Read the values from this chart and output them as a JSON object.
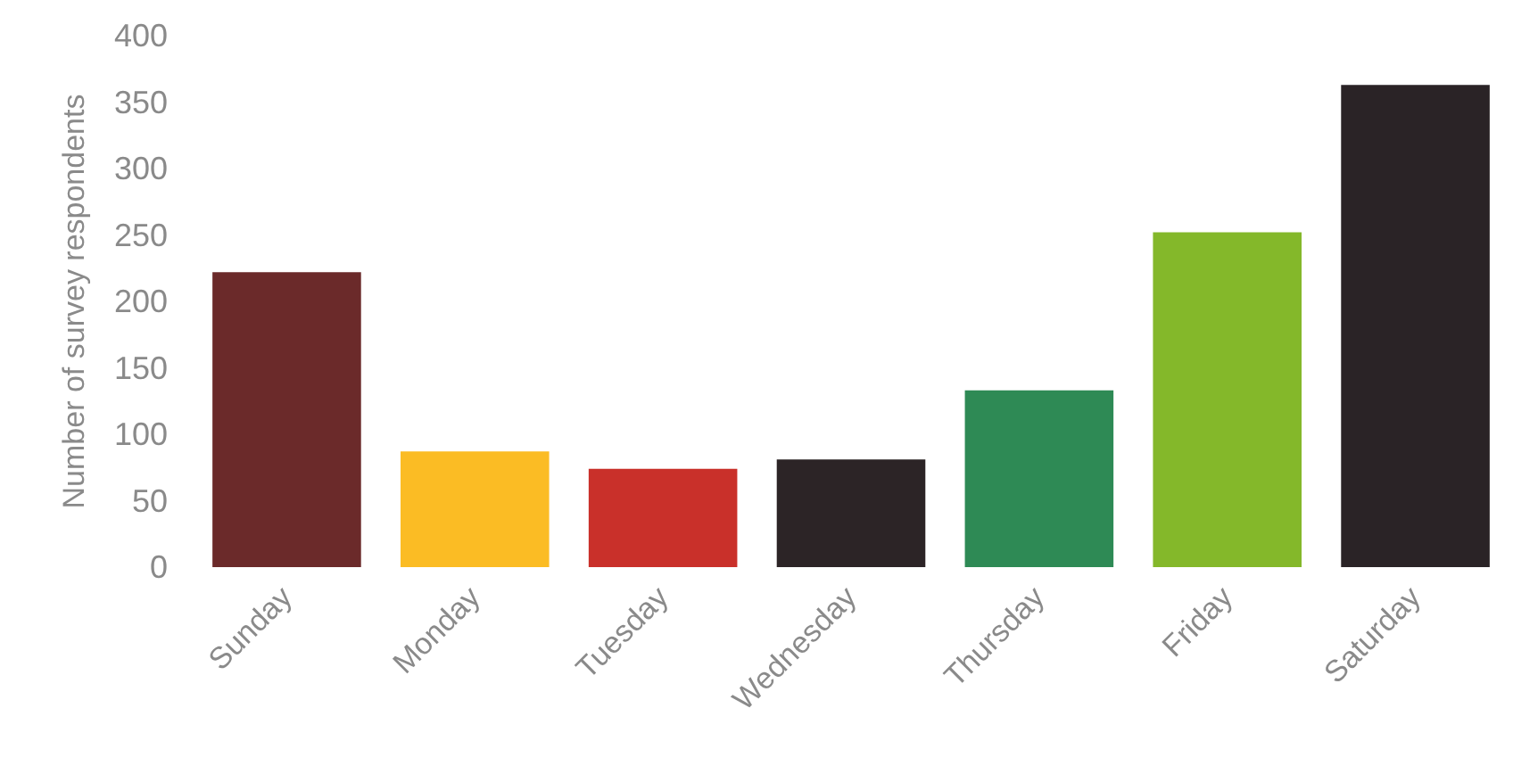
{
  "chart_data": {
    "type": "bar",
    "ylabel": "Number of survey respondents",
    "categories": [
      "Sunday",
      "Monday",
      "Tuesday",
      "Wednesday",
      "Thursday",
      "Friday",
      "Saturday"
    ],
    "values": [
      222,
      87,
      74,
      81,
      133,
      252,
      363
    ],
    "colors": [
      "#6b2a2a",
      "#fbbc24",
      "#c9302a",
      "#2c2426",
      "#2e8a55",
      "#84b82a",
      "#2a2326"
    ],
    "ylim": [
      0,
      400
    ],
    "yticks": [
      0,
      50,
      100,
      150,
      200,
      250,
      300,
      350,
      400
    ],
    "grid": false
  }
}
